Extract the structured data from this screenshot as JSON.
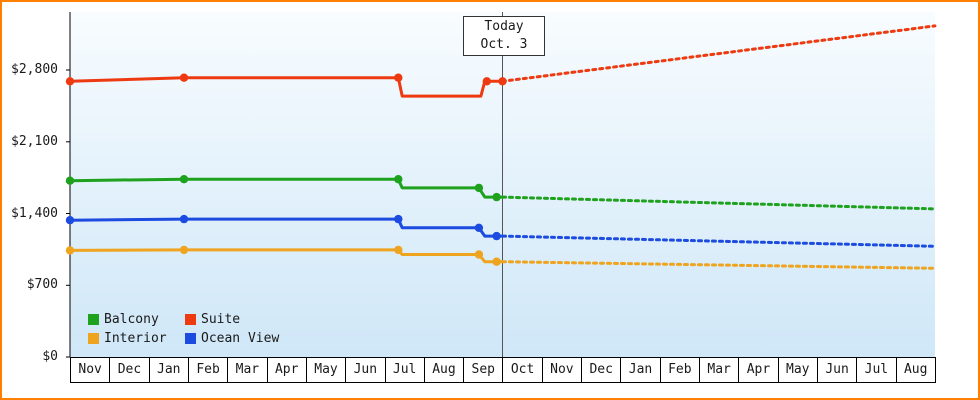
{
  "page": {
    "border_color": "#ff8000",
    "background": "#ffffff",
    "plot_bg_top": "#f8fcff",
    "plot_bg_bottom": "#cfe7f7",
    "today_line_color": "#555555",
    "axis_color": "#000000"
  },
  "chart_data": {
    "type": "line",
    "title": "",
    "xlabel": "",
    "ylabel": "",
    "grid": false,
    "legend_position": "bottom-left-inside",
    "x_axis": {
      "unit": "month",
      "labels": [
        "Nov",
        "Dec",
        "Jan",
        "Feb",
        "Mar",
        "Apr",
        "May",
        "Jun",
        "Jul",
        "Aug",
        "Sep",
        "Oct",
        "Nov",
        "Dec",
        "Jan",
        "Feb",
        "Mar",
        "Apr",
        "May",
        "Jun",
        "Jul",
        "Aug"
      ]
    },
    "y_axis": {
      "ticks": [
        0,
        700,
        1400,
        2100,
        2800
      ],
      "tick_labels": [
        "$0",
        "$700",
        "$1,400",
        "$2,100",
        "$2,800"
      ],
      "ylim": [
        0,
        3380
      ]
    },
    "today_marker": {
      "line1": "Today",
      "line2": "Oct. 3",
      "x": 11
    },
    "legend": [
      {
        "label": "Balcony",
        "color": "#1ea21e"
      },
      {
        "label": "Suite",
        "color": "#ee3a10"
      },
      {
        "label": "Interior",
        "color": "#efa41f"
      },
      {
        "label": "Ocean View",
        "color": "#1c4be0"
      }
    ],
    "series": [
      {
        "name": "Interior",
        "color": "#efa41f",
        "solid": [
          [
            0,
            1040
          ],
          [
            2.9,
            1045
          ],
          [
            8.35,
            1045
          ],
          [
            8.45,
            1000
          ],
          [
            10.4,
            1000
          ],
          [
            10.55,
            930
          ],
          [
            11,
            930
          ]
        ],
        "dotted": [
          [
            11,
            930
          ],
          [
            22,
            865
          ]
        ],
        "markers": [
          [
            0,
            1040
          ],
          [
            2.9,
            1045
          ],
          [
            8.35,
            1045
          ],
          [
            10.4,
            1000
          ],
          [
            10.85,
            930
          ]
        ]
      },
      {
        "name": "Ocean View",
        "color": "#1c4be0",
        "solid": [
          [
            0,
            1335
          ],
          [
            2.9,
            1345
          ],
          [
            8.35,
            1345
          ],
          [
            8.45,
            1260
          ],
          [
            10.4,
            1260
          ],
          [
            10.55,
            1180
          ],
          [
            11,
            1180
          ]
        ],
        "dotted": [
          [
            11,
            1180
          ],
          [
            22,
            1080
          ]
        ],
        "markers": [
          [
            0,
            1335
          ],
          [
            2.9,
            1345
          ],
          [
            8.35,
            1345
          ],
          [
            10.4,
            1260
          ],
          [
            10.85,
            1180
          ]
        ]
      },
      {
        "name": "Balcony",
        "color": "#1ea21e",
        "solid": [
          [
            0,
            1720
          ],
          [
            2.9,
            1735
          ],
          [
            8.35,
            1735
          ],
          [
            8.45,
            1650
          ],
          [
            10.4,
            1650
          ],
          [
            10.55,
            1560
          ],
          [
            11,
            1560
          ]
        ],
        "dotted": [
          [
            11,
            1560
          ],
          [
            22,
            1445
          ]
        ],
        "markers": [
          [
            0,
            1720
          ],
          [
            2.9,
            1735
          ],
          [
            8.35,
            1735
          ],
          [
            10.4,
            1650
          ],
          [
            10.85,
            1560
          ]
        ]
      },
      {
        "name": "Suite",
        "color": "#ee3a10",
        "solid": [
          [
            0,
            2690
          ],
          [
            2.9,
            2725
          ],
          [
            8.35,
            2725
          ],
          [
            8.45,
            2545
          ],
          [
            10.45,
            2545
          ],
          [
            10.55,
            2690
          ],
          [
            11,
            2690
          ]
        ],
        "dotted": [
          [
            11,
            2690
          ],
          [
            22,
            3230
          ]
        ],
        "markers": [
          [
            0,
            2690
          ],
          [
            2.9,
            2725
          ],
          [
            8.35,
            2725
          ],
          [
            10.6,
            2690
          ],
          [
            11,
            2690
          ]
        ]
      }
    ]
  }
}
